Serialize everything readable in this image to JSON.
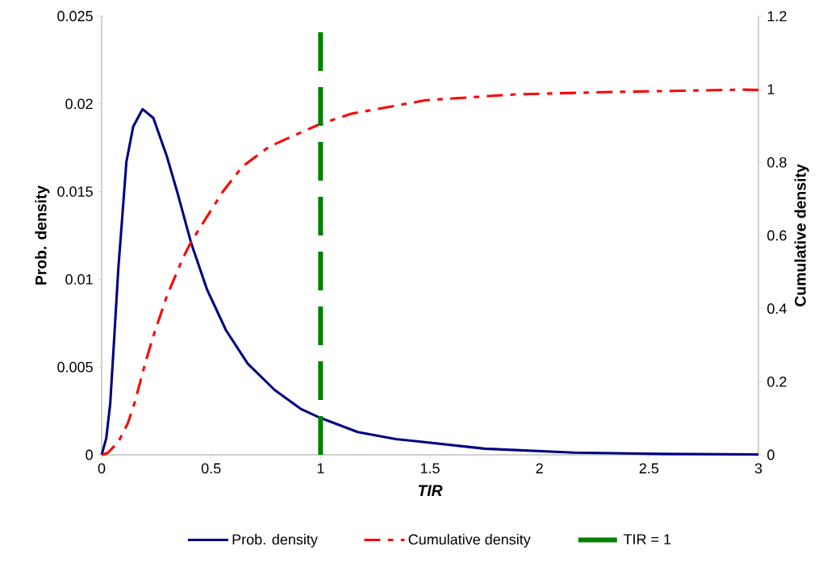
{
  "chart_data": {
    "type": "line",
    "xlabel": "TIR",
    "ylabel": "Prob. density",
    "y2label": "Cumulative  density",
    "xlim": [
      0,
      3
    ],
    "xticks": [
      0,
      0.5,
      1,
      1.5,
      2,
      2.5,
      3
    ],
    "ylim": [
      0,
      0.025
    ],
    "yticks": [
      0,
      0.005,
      0.01,
      0.015,
      0.02,
      0.025
    ],
    "y2lim": [
      0,
      1.2
    ],
    "y2ticks": [
      0,
      0.2,
      0.4,
      0.6,
      0.8,
      1,
      1.2
    ],
    "legend": "bottom",
    "marker": "none",
    "line_style": "solid",
    "series": [
      {
        "name": "Prob. density",
        "color": "#000080",
        "x": [
          0,
          0.021,
          0.039,
          0.058,
          0.076,
          0.095,
          0.113,
          0.144,
          0.187,
          0.236,
          0.298,
          0.347,
          0.408,
          0.482,
          0.568,
          0.667,
          0.79,
          0.912,
          1,
          1.17,
          1.344,
          1.75,
          2.157,
          2.56,
          3
        ],
        "values": [
          0,
          0.00095,
          0.0029,
          0.0068,
          0.0106,
          0.0137,
          0.0167,
          0.0187,
          0.0197,
          0.0192,
          0.017,
          0.0149,
          0.0121,
          0.0094,
          0.0071,
          0.0052,
          0.0037,
          0.0026,
          0.0021,
          0.0013,
          0.0009,
          0.00035,
          0.00013,
          5e-05,
          2e-05
        ]
      },
      {
        "name": "Cumulative density",
        "color": "#ff0000",
        "axis": "y2",
        "line_style": "dashed",
        "x": [
          0,
          0.027,
          0.076,
          0.119,
          0.15,
          0.199,
          0.236,
          0.298,
          0.371,
          0.408,
          0.47,
          0.556,
          0.642,
          0.765,
          0.888,
          0.998,
          1.14,
          1.48,
          1.89,
          2.29,
          2.93,
          3
        ],
        "values": [
          0,
          0.005,
          0.035,
          0.086,
          0.141,
          0.251,
          0.325,
          0.435,
          0.538,
          0.582,
          0.641,
          0.722,
          0.788,
          0.843,
          0.876,
          0.905,
          0.933,
          0.97,
          0.986,
          0.992,
          0.999,
          0.998
        ]
      }
    ],
    "ref_lines": [
      {
        "axis": "x",
        "value": 1,
        "label": "TIR = 1",
        "color": "#008000",
        "line_style": "dashed"
      }
    ]
  }
}
